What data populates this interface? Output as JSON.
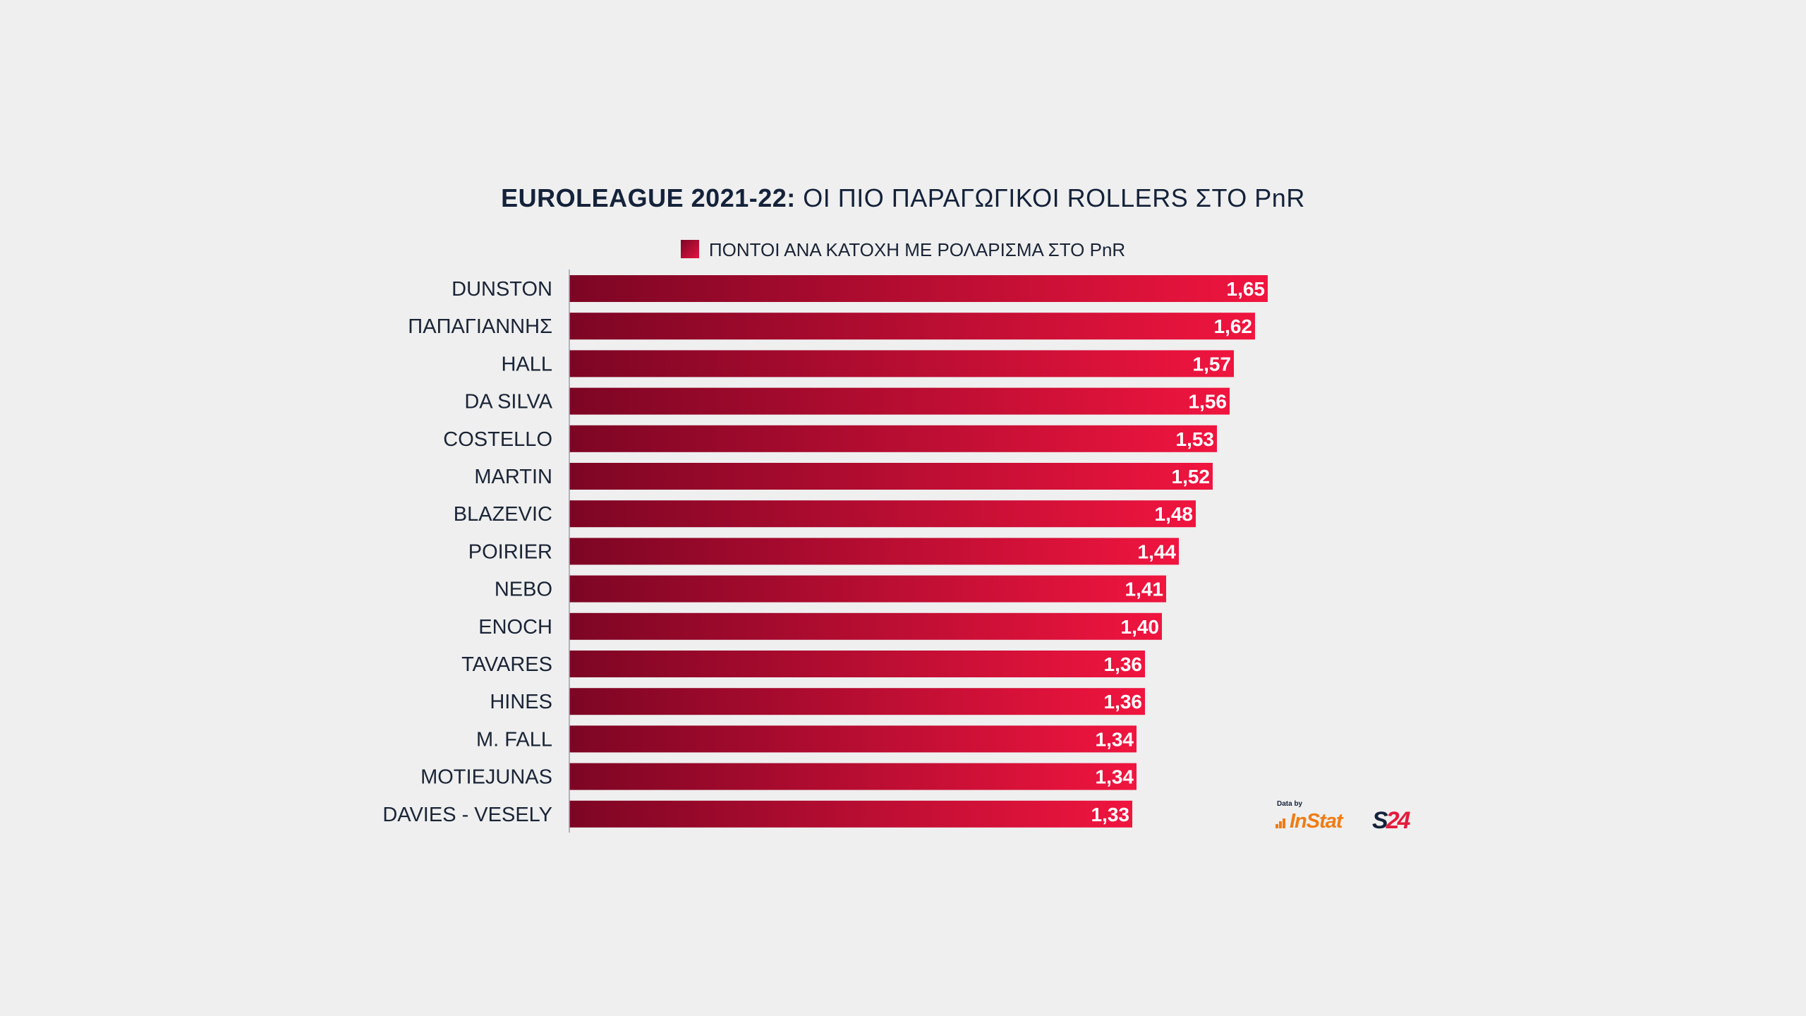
{
  "title": {
    "bold_part": "EUROLEAGUE 2021-22:",
    "rest": " ΟΙ ΠΙΟ ΠΑΡΑΓΩΓΙΚΟΙ ROLLERS ΣΤΟ PnR"
  },
  "credits": {
    "data_by": "Data by",
    "instat": "InStat",
    "s24_s": "S",
    "s24_num": "24"
  },
  "colors": {
    "bar_start": "#7d0524",
    "bar_end": "#f0153f",
    "background": "#efefef",
    "text": "#1a2436"
  },
  "chart_data": {
    "type": "bar",
    "orientation": "horizontal",
    "categories": [
      "DUNSTON",
      "ΠΑΠΑΓΙΑΝΝΗΣ",
      "HALL",
      "DA SILVA",
      "COSTELLO",
      "MARTIN",
      "BLAZEVIC",
      "POIRIER",
      "NEBO",
      "ENOCH",
      "TAVARES",
      "HINES",
      "M. FALL",
      "MOTIEJUNAS",
      "DAVIES - VESELY"
    ],
    "series": [
      {
        "name": "ΠΟΝΤΟΙ ΑΝΑ ΚΑΤΟΧΗ ΜΕ ΡΟΛΑΡΙΣΜΑ ΣΤΟ PnR",
        "values": [
          1.65,
          1.62,
          1.57,
          1.56,
          1.53,
          1.52,
          1.48,
          1.44,
          1.41,
          1.4,
          1.36,
          1.36,
          1.34,
          1.34,
          1.33
        ],
        "labels": [
          "1,65",
          "1,62",
          "1,57",
          "1,56",
          "1,53",
          "1,52",
          "1,48",
          "1,44",
          "1,41",
          "1,40",
          "1,36",
          "1,36",
          "1,34",
          "1,34",
          "1,33"
        ]
      }
    ],
    "xlim": [
      0,
      1.65
    ],
    "legend": "top-center",
    "grid": false
  }
}
